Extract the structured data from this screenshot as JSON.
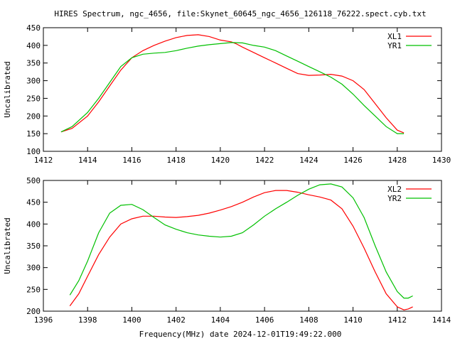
{
  "title": "HIRES Spectrum, ngc_4656, file:Skynet_60645_ngc_4656_126118_76222.spect.cyb.txt",
  "xlabel": "Frequency(MHz) date 2024-12-01T19:49:22.000",
  "colors": {
    "red": "#ff0000",
    "green": "#00c000"
  },
  "chart_data": [
    {
      "type": "line",
      "title": "HIRES Spectrum, ngc_4656, file:Skynet_60645_ngc_4656_126118_76222.spect.cyb.txt",
      "xlabel": "",
      "ylabel": "Uncalibrated",
      "xlim": [
        1412,
        1430
      ],
      "ylim": [
        100,
        450
      ],
      "xticks": [
        1412,
        1414,
        1416,
        1418,
        1420,
        1422,
        1424,
        1426,
        1428,
        1430
      ],
      "yticks": [
        100,
        150,
        200,
        250,
        300,
        350,
        400,
        450
      ],
      "legend": "top-right",
      "grid": false,
      "series": [
        {
          "name": "XL1",
          "color": "#ff0000",
          "points": [
            [
              1412.8,
              155
            ],
            [
              1413.3,
              165
            ],
            [
              1414,
              200
            ],
            [
              1414.5,
              240
            ],
            [
              1415,
              285
            ],
            [
              1415.5,
              330
            ],
            [
              1416,
              365
            ],
            [
              1416.5,
              385
            ],
            [
              1417,
              400
            ],
            [
              1417.5,
              412
            ],
            [
              1418,
              422
            ],
            [
              1418.5,
              428
            ],
            [
              1419,
              430
            ],
            [
              1419.5,
              425
            ],
            [
              1420,
              415
            ],
            [
              1420.5,
              410
            ],
            [
              1420.7,
              405
            ],
            [
              1421,
              395
            ],
            [
              1421.5,
              380
            ],
            [
              1422,
              365
            ],
            [
              1422.5,
              350
            ],
            [
              1423,
              335
            ],
            [
              1423.5,
              320
            ],
            [
              1424,
              315
            ],
            [
              1424.5,
              316
            ],
            [
              1425,
              318
            ],
            [
              1425.5,
              313
            ],
            [
              1426,
              300
            ],
            [
              1426.5,
              275
            ],
            [
              1427,
              235
            ],
            [
              1427.5,
              195
            ],
            [
              1428,
              160
            ],
            [
              1428.3,
              152
            ]
          ]
        },
        {
          "name": "YR1",
          "color": "#00c000",
          "points": [
            [
              1412.8,
              155
            ],
            [
              1413.3,
              170
            ],
            [
              1414,
              210
            ],
            [
              1414.5,
              250
            ],
            [
              1415,
              295
            ],
            [
              1415.5,
              340
            ],
            [
              1416,
              365
            ],
            [
              1416.5,
              375
            ],
            [
              1417,
              378
            ],
            [
              1417.5,
              380
            ],
            [
              1418,
              385
            ],
            [
              1418.5,
              392
            ],
            [
              1419,
              398
            ],
            [
              1419.5,
              402
            ],
            [
              1420,
              405
            ],
            [
              1420.5,
              408
            ],
            [
              1421,
              407
            ],
            [
              1421.5,
              400
            ],
            [
              1422,
              395
            ],
            [
              1422.5,
              385
            ],
            [
              1423,
              370
            ],
            [
              1423.5,
              355
            ],
            [
              1424,
              340
            ],
            [
              1424.5,
              325
            ],
            [
              1425,
              310
            ],
            [
              1425.5,
              290
            ],
            [
              1426,
              262
            ],
            [
              1426.5,
              230
            ],
            [
              1427,
              200
            ],
            [
              1427.5,
              170
            ],
            [
              1428,
              150
            ],
            [
              1428.3,
              150
            ]
          ]
        }
      ]
    },
    {
      "type": "line",
      "title": "",
      "xlabel": "Frequency(MHz) date 2024-12-01T19:49:22.000",
      "ylabel": "Uncalibrated",
      "xlim": [
        1396,
        1414
      ],
      "ylim": [
        200,
        500
      ],
      "xticks": [
        1396,
        1398,
        1400,
        1402,
        1404,
        1406,
        1408,
        1410,
        1412,
        1414
      ],
      "yticks": [
        200,
        250,
        300,
        350,
        400,
        450,
        500
      ],
      "legend": "top-right",
      "grid": false,
      "series": [
        {
          "name": "XL2",
          "color": "#ff0000",
          "points": [
            [
              1397.2,
              212
            ],
            [
              1397.6,
              240
            ],
            [
              1398,
              280
            ],
            [
              1398.5,
              330
            ],
            [
              1399,
              370
            ],
            [
              1399.5,
              400
            ],
            [
              1400,
              412
            ],
            [
              1400.5,
              418
            ],
            [
              1401,
              418
            ],
            [
              1401.5,
              416
            ],
            [
              1402,
              415
            ],
            [
              1402.5,
              417
            ],
            [
              1403,
              420
            ],
            [
              1403.5,
              425
            ],
            [
              1404,
              432
            ],
            [
              1404.5,
              440
            ],
            [
              1405,
              450
            ],
            [
              1405.5,
              462
            ],
            [
              1406,
              472
            ],
            [
              1406.5,
              477
            ],
            [
              1407,
              477
            ],
            [
              1407.5,
              473
            ],
            [
              1408,
              467
            ],
            [
              1408.5,
              462
            ],
            [
              1409,
              455
            ],
            [
              1409.5,
              435
            ],
            [
              1410,
              395
            ],
            [
              1410.5,
              345
            ],
            [
              1411,
              290
            ],
            [
              1411.5,
              240
            ],
            [
              1412,
              210
            ],
            [
              1412.3,
              203
            ],
            [
              1412.5,
              205
            ],
            [
              1412.7,
              210
            ]
          ]
        },
        {
          "name": "YR2",
          "color": "#00c000",
          "points": [
            [
              1397.2,
              237
            ],
            [
              1397.6,
              270
            ],
            [
              1398,
              315
            ],
            [
              1398.5,
              380
            ],
            [
              1399,
              425
            ],
            [
              1399.5,
              443
            ],
            [
              1400,
              445
            ],
            [
              1400.5,
              433
            ],
            [
              1401,
              415
            ],
            [
              1401.5,
              398
            ],
            [
              1402,
              388
            ],
            [
              1402.5,
              380
            ],
            [
              1403,
              375
            ],
            [
              1403.5,
              372
            ],
            [
              1404,
              370
            ],
            [
              1404.5,
              372
            ],
            [
              1405,
              380
            ],
            [
              1405.5,
              398
            ],
            [
              1406,
              418
            ],
            [
              1406.5,
              435
            ],
            [
              1407,
              450
            ],
            [
              1407.5,
              466
            ],
            [
              1408,
              480
            ],
            [
              1408.5,
              490
            ],
            [
              1409,
              492
            ],
            [
              1409.5,
              485
            ],
            [
              1410,
              460
            ],
            [
              1410.5,
              415
            ],
            [
              1411,
              350
            ],
            [
              1411.5,
              290
            ],
            [
              1412,
              245
            ],
            [
              1412.3,
              230
            ],
            [
              1412.5,
              230
            ],
            [
              1412.7,
              235
            ]
          ]
        }
      ]
    }
  ]
}
